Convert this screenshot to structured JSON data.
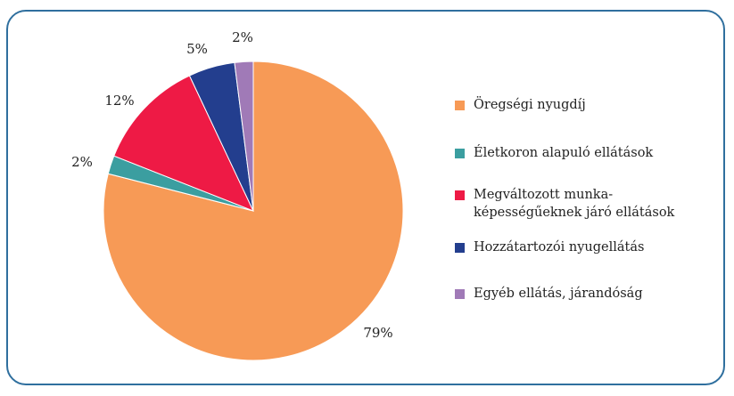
{
  "chart_data": {
    "type": "pie",
    "slices": [
      {
        "label": "Öregségi nyugdíj",
        "value": 79,
        "value_label": "79%",
        "color": "#f79a56"
      },
      {
        "label": "Életkoron alapuló ellátások",
        "value": 2,
        "value_label": "2%",
        "color": "#3b9ea0"
      },
      {
        "label": "Megváltozott munka-képességűeknek járó ellátások",
        "value": 12,
        "value_label": "12%",
        "color": "#ee1a45"
      },
      {
        "label": "Hozzátartozói nyugellátás",
        "value": 5,
        "value_label": "5%",
        "color": "#233e8e"
      },
      {
        "label": "Egyéb ellátás, járandóság",
        "value": 2,
        "value_label": "2%",
        "color": "#a07ab7"
      }
    ],
    "legend_placement": "right",
    "legend": [
      {
        "lines": [
          "Öregségi nyugdíj"
        ]
      },
      {
        "lines": [
          "Életkoron alapuló ellátások"
        ]
      },
      {
        "lines": [
          "Megváltozott munka-",
          "képességűeknek járó ellátások"
        ]
      },
      {
        "lines": [
          "Hozzátartozói nyugellátás"
        ]
      },
      {
        "lines": [
          "Egyéb ellátás, járandóság"
        ]
      }
    ]
  },
  "colors": {
    "border": "#2f6f9e"
  }
}
